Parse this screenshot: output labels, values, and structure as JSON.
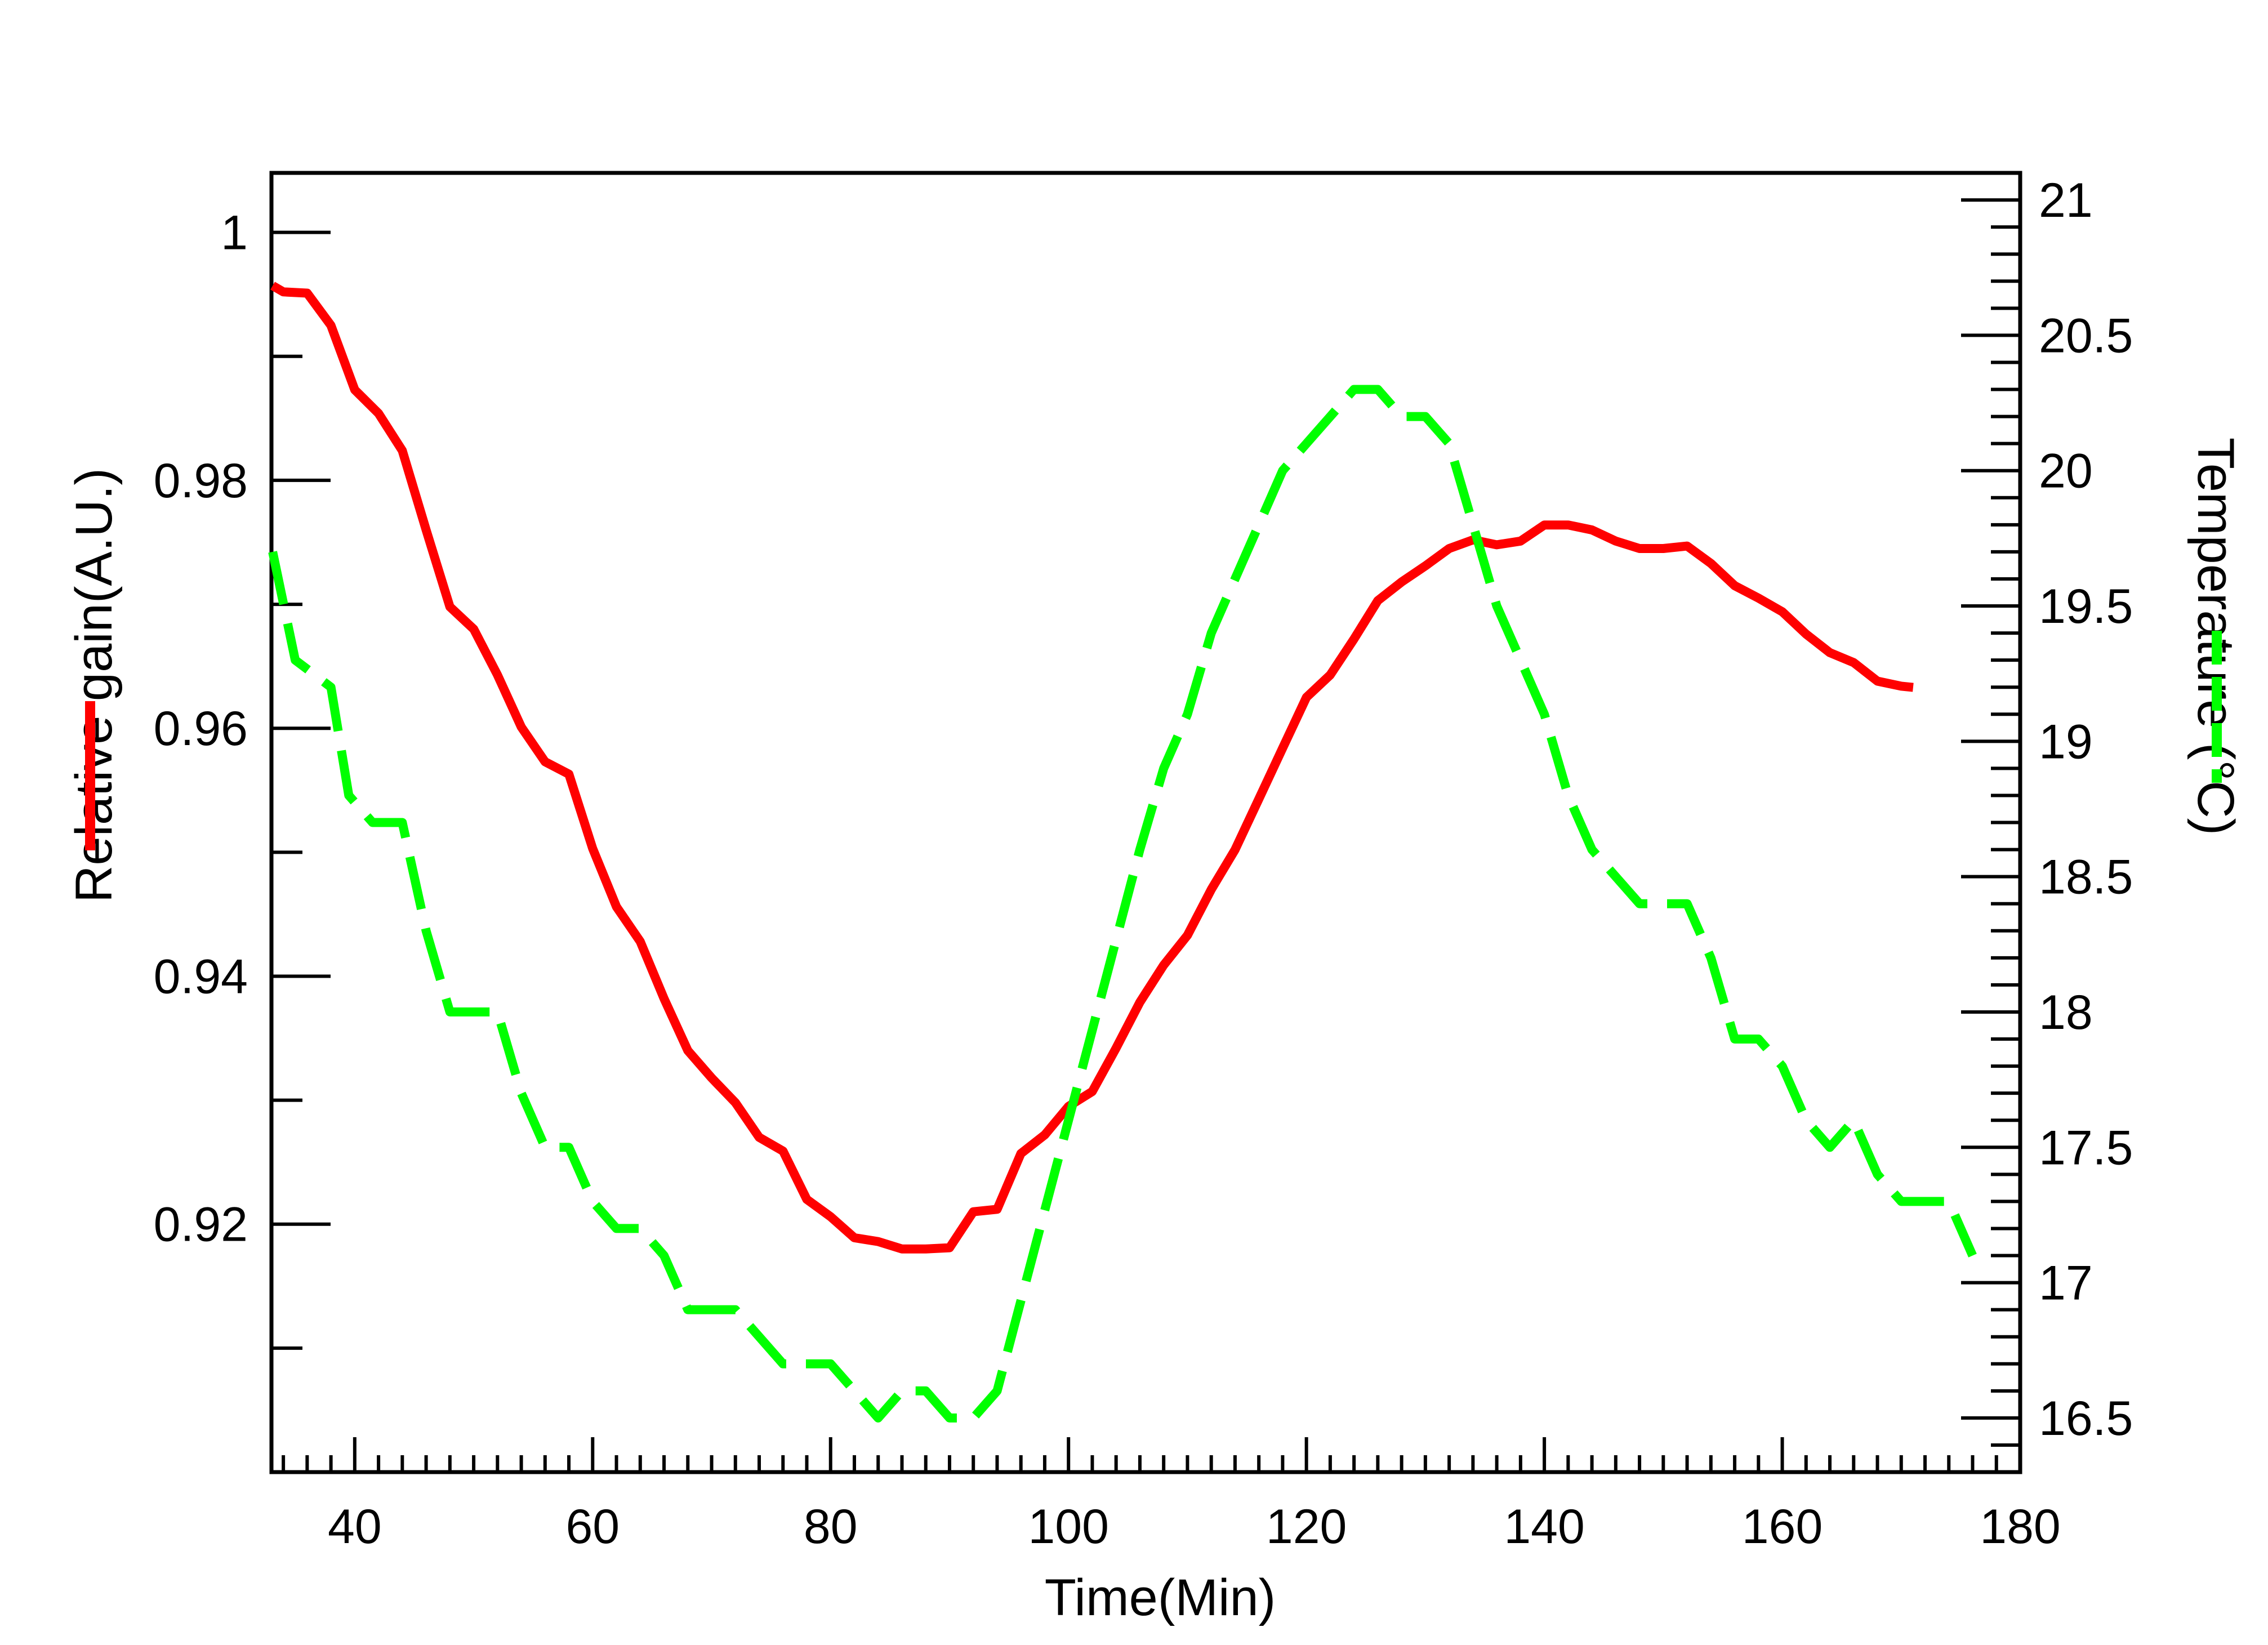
{
  "chart_data": {
    "type": "line",
    "xlabel": "Time(Min)",
    "ylabel_left": "Relative gain(A.U.)",
    "ylabel_right": "Temperature (°C)",
    "xlim": [
      33,
      180
    ],
    "ylim_left": [
      0.9,
      1.0048
    ],
    "ylim_right": [
      16.3,
      21.1
    ],
    "x_ticks": [
      40,
      60,
      80,
      100,
      120,
      140,
      160,
      180
    ],
    "y_left_ticks": [
      0.92,
      0.94,
      0.96,
      0.98,
      1
    ],
    "y_right_ticks": [
      16.5,
      17,
      17.5,
      18,
      18.5,
      19,
      19.5,
      20,
      20.5,
      21
    ],
    "grid": false,
    "colors": {
      "gain": "#ff0000",
      "temperature": "#00ff00",
      "axes": "#000000"
    },
    "series": [
      {
        "key": "gain",
        "axis": "left",
        "style": "solid",
        "points": [
          [
            33.1,
            0.9957
          ],
          [
            34,
            0.9952
          ],
          [
            36,
            0.9951
          ],
          [
            38,
            0.9925
          ],
          [
            40,
            0.9873
          ],
          [
            42,
            0.9854
          ],
          [
            44,
            0.9824
          ],
          [
            46,
            0.976
          ],
          [
            48,
            0.9698
          ],
          [
            50,
            0.968
          ],
          [
            52,
            0.9643
          ],
          [
            54,
            0.9601
          ],
          [
            56,
            0.9573
          ],
          [
            58,
            0.9563
          ],
          [
            60,
            0.9503
          ],
          [
            62,
            0.9456
          ],
          [
            64,
            0.9428
          ],
          [
            66,
            0.9382
          ],
          [
            68,
            0.934
          ],
          [
            70,
            0.9318
          ],
          [
            72,
            0.9298
          ],
          [
            74,
            0.927
          ],
          [
            76,
            0.9259
          ],
          [
            78,
            0.922
          ],
          [
            80,
            0.9206
          ],
          [
            82,
            0.9189
          ],
          [
            84,
            0.9186
          ],
          [
            86,
            0.918
          ],
          [
            88,
            0.918
          ],
          [
            90,
            0.9181
          ],
          [
            92,
            0.921
          ],
          [
            94,
            0.9212
          ],
          [
            96,
            0.9257
          ],
          [
            98,
            0.9272
          ],
          [
            100,
            0.9295
          ],
          [
            102,
            0.9307
          ],
          [
            104,
            0.9342
          ],
          [
            106,
            0.9379
          ],
          [
            108,
            0.9409
          ],
          [
            110,
            0.9433
          ],
          [
            112,
            0.947
          ],
          [
            114,
            0.9502
          ],
          [
            116,
            0.9543
          ],
          [
            118,
            0.9584
          ],
          [
            120,
            0.9625
          ],
          [
            122,
            0.9643
          ],
          [
            124,
            0.9672
          ],
          [
            126,
            0.9703
          ],
          [
            128,
            0.9718
          ],
          [
            130,
            0.9731
          ],
          [
            132,
            0.9745
          ],
          [
            134,
            0.9752
          ],
          [
            136,
            0.9748
          ],
          [
            138,
            0.9751
          ],
          [
            140,
            0.9764
          ],
          [
            142,
            0.9764
          ],
          [
            144,
            0.976
          ],
          [
            146,
            0.9751
          ],
          [
            148,
            0.9745
          ],
          [
            150,
            0.9745
          ],
          [
            152,
            0.9747
          ],
          [
            154,
            0.9733
          ],
          [
            156,
            0.9715
          ],
          [
            158,
            0.9705
          ],
          [
            160,
            0.9694
          ],
          [
            162,
            0.9676
          ],
          [
            164,
            0.9661
          ],
          [
            166,
            0.9653
          ],
          [
            168,
            0.9638
          ],
          [
            170,
            0.9634
          ],
          [
            171,
            0.9633
          ]
        ]
      },
      {
        "key": "temperature",
        "axis": "right",
        "style": "dashed",
        "points": [
          [
            33.1,
            19.7
          ],
          [
            35,
            19.3
          ],
          [
            38,
            19.2
          ],
          [
            39.5,
            18.8
          ],
          [
            41.5,
            18.7
          ],
          [
            44,
            18.7
          ],
          [
            46,
            18.3
          ],
          [
            48,
            18.0
          ],
          [
            52,
            18.0
          ],
          [
            54,
            17.7
          ],
          [
            56,
            17.5
          ],
          [
            58,
            17.5
          ],
          [
            60,
            17.3
          ],
          [
            62,
            17.2
          ],
          [
            64,
            17.2
          ],
          [
            66,
            17.1
          ],
          [
            68,
            16.9
          ],
          [
            72,
            16.9
          ],
          [
            76,
            16.7
          ],
          [
            80,
            16.7
          ],
          [
            84,
            16.5
          ],
          [
            86,
            16.6
          ],
          [
            88,
            16.6
          ],
          [
            90,
            16.5
          ],
          [
            92,
            16.5
          ],
          [
            94,
            16.6
          ],
          [
            97,
            17.1
          ],
          [
            100,
            17.6
          ],
          [
            103,
            18.1
          ],
          [
            106,
            18.6
          ],
          [
            108,
            18.9
          ],
          [
            110,
            19.1
          ],
          [
            112,
            19.4
          ],
          [
            114,
            19.6
          ],
          [
            116,
            19.8
          ],
          [
            118,
            20.0
          ],
          [
            120,
            20.1
          ],
          [
            122,
            20.2
          ],
          [
            124,
            20.3
          ],
          [
            126,
            20.3
          ],
          [
            128,
            20.2
          ],
          [
            130,
            20.2
          ],
          [
            132,
            20.1
          ],
          [
            134,
            19.8
          ],
          [
            136,
            19.5
          ],
          [
            138,
            19.3
          ],
          [
            140,
            19.1
          ],
          [
            142,
            18.8
          ],
          [
            144,
            18.6
          ],
          [
            146,
            18.5
          ],
          [
            148,
            18.4
          ],
          [
            150,
            18.4
          ],
          [
            152,
            18.4
          ],
          [
            154,
            18.2
          ],
          [
            156,
            17.9
          ],
          [
            158,
            17.9
          ],
          [
            160,
            17.8
          ],
          [
            162,
            17.6
          ],
          [
            164,
            17.5
          ],
          [
            166,
            17.6
          ],
          [
            168,
            17.4
          ],
          [
            170,
            17.3
          ],
          [
            172,
            17.3
          ],
          [
            174,
            17.3
          ],
          [
            176,
            17.1
          ]
        ]
      }
    ]
  }
}
